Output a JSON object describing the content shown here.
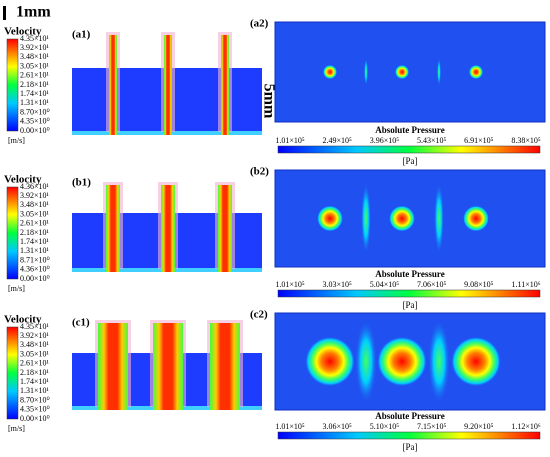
{
  "scale_bar": "1mm",
  "height_label": "5mm",
  "rows": [
    {
      "velocity": {
        "panel": "(a1)",
        "title": "Velocity",
        "ticks": [
          "4.35×10¹",
          "3.92×10¹",
          "3.48×10¹",
          "3.05×10¹",
          "2.61×10¹",
          "2.18×10¹",
          "1.74×10¹",
          "1.31×10¹",
          "8.70×10⁰",
          "4.35×10⁰",
          "0.00×10⁰"
        ],
        "unit": "[m/s]"
      },
      "pressure": {
        "panel": "(a2)",
        "title": "Absolute Pressure",
        "ticks": [
          "1.01×10⁵",
          "2.49×10⁵",
          "3.96×10⁵",
          "5.43×10⁵",
          "6.91×10⁵",
          "8.38×10⁵"
        ],
        "unit": "[Pa]"
      }
    },
    {
      "velocity": {
        "panel": "(b1)",
        "title": "Velocity",
        "ticks": [
          "4.36×10¹",
          "3.92×10¹",
          "3.48×10¹",
          "3.05×10¹",
          "2.61×10¹",
          "2.18×10¹",
          "1.74×10¹",
          "1.31×10¹",
          "8.71×10⁰",
          "4.36×10⁰",
          "0.00×10⁰"
        ],
        "unit": "[m/s]"
      },
      "pressure": {
        "panel": "(b2)",
        "title": "Absolute Pressure",
        "ticks": [
          "1.01×10⁵",
          "3.03×10⁵",
          "5.04×10⁵",
          "7.06×10⁵",
          "9.08×10⁵",
          "1.11×10⁶"
        ],
        "unit": "[Pa]"
      }
    },
    {
      "velocity": {
        "panel": "(c1)",
        "title": "Velocity",
        "ticks": [
          "4.35×10¹",
          "3.92×10¹",
          "3.48×10¹",
          "3.05×10¹",
          "2.61×10¹",
          "2.18×10¹",
          "1.74×10¹",
          "1.31×10¹",
          "8.70×10⁰",
          "4.35×10⁰",
          "0.00×10⁰"
        ],
        "unit": "[m/s]"
      },
      "pressure": {
        "panel": "(c2)",
        "title": "Absolute Pressure",
        "ticks": [
          "1.01×10⁵",
          "3.06×10⁵",
          "5.10×10⁵",
          "7.15×10⁵",
          "9.20×10⁵",
          "1.12×10⁶"
        ],
        "unit": "[Pa]"
      }
    }
  ]
}
